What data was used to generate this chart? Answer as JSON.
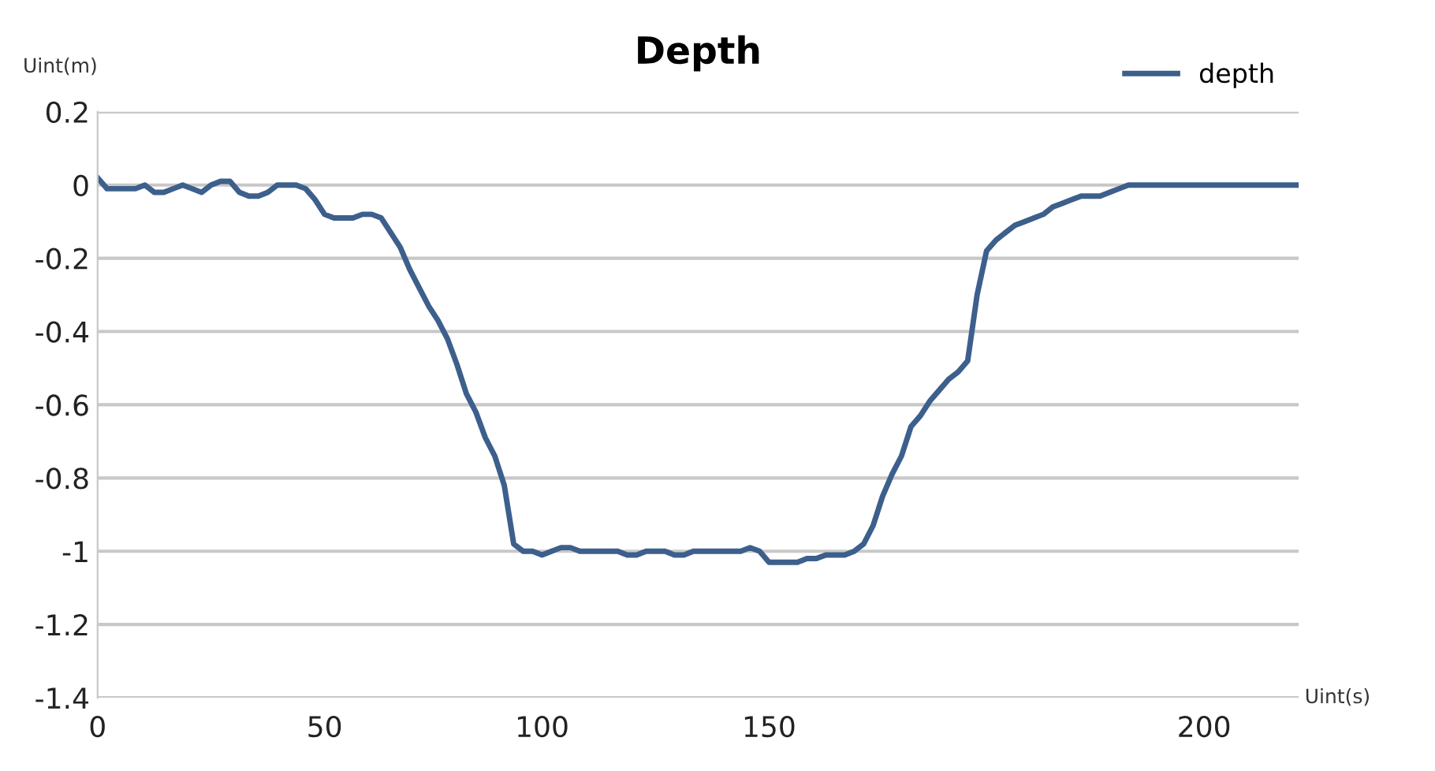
{
  "chart_data": {
    "type": "line",
    "title": "Depth",
    "xlabel": "Uint(s)",
    "ylabel": "Uint(m)",
    "categories": [
      "0",
      null,
      null,
      null,
      null,
      null,
      null,
      null,
      null,
      null,
      null,
      null,
      null,
      null,
      null,
      null,
      null,
      null,
      null,
      null,
      null,
      null,
      null,
      null,
      "50",
      null,
      null,
      null,
      null,
      null,
      null,
      null,
      null,
      null,
      null,
      null,
      null,
      null,
      null,
      null,
      null,
      null,
      null,
      null,
      null,
      null,
      null,
      "100",
      null,
      null,
      null,
      null,
      null,
      null,
      null,
      null,
      null,
      null,
      null,
      null,
      null,
      null,
      null,
      null,
      null,
      null,
      null,
      null,
      null,
      null,
      null,
      "150",
      null,
      null,
      null,
      null,
      null,
      null,
      null,
      null,
      null,
      null,
      null,
      null,
      null,
      null,
      null,
      null,
      null,
      null,
      null,
      null,
      null,
      null,
      null,
      null,
      null,
      null,
      null,
      null,
      null,
      null,
      null,
      null,
      null,
      null,
      null,
      null,
      null,
      null,
      null,
      null,
      null,
      null,
      null,
      null,
      null,
      "200",
      null,
      null,
      null,
      null,
      null,
      null,
      null,
      null,
      null,
      null
    ],
    "ylim": [
      -1.4,
      0.2
    ],
    "yticks": [
      0.2,
      0,
      -0.2,
      -0.4,
      -0.6,
      -0.8,
      -1,
      -1.2,
      -1.4
    ],
    "grid": "y",
    "legend": "top right",
    "line_style": "solid",
    "marker": "none",
    "series": [
      {
        "name": "depth",
        "color": "#3d5f8c",
        "values": [
          0.02,
          -0.01,
          -0.01,
          -0.01,
          -0.01,
          0,
          -0.02,
          -0.02,
          -0.01,
          0,
          -0.01,
          -0.02,
          0,
          0.01,
          0.01,
          -0.02,
          -0.03,
          -0.03,
          -0.02,
          0,
          0,
          0,
          -0.01,
          -0.04,
          -0.08,
          -0.09,
          -0.09,
          -0.09,
          -0.08,
          -0.08,
          -0.09,
          -0.13,
          -0.17,
          -0.23,
          -0.28,
          -0.33,
          -0.37,
          -0.42,
          -0.49,
          -0.57,
          -0.62,
          -0.69,
          -0.74,
          -0.82,
          -0.98,
          -1.0,
          -1.0,
          -1.01,
          -1.0,
          -0.99,
          -0.99,
          -1.0,
          -1.0,
          -1.0,
          -1.0,
          -1.0,
          -1.01,
          -1.01,
          -1.0,
          -1.0,
          -1.0,
          -1.01,
          -1.01,
          -1.0,
          -1.0,
          -1.0,
          -1.0,
          -1.0,
          -1.0,
          -0.99,
          -1.0,
          -1.03,
          -1.03,
          -1.03,
          -1.03,
          -1.02,
          -1.02,
          -1.01,
          -1.01,
          -1.01,
          -1.0,
          -0.98,
          -0.93,
          -0.85,
          -0.79,
          -0.74,
          -0.66,
          -0.63,
          -0.59,
          -0.56,
          -0.53,
          -0.51,
          -0.48,
          -0.3,
          -0.18,
          -0.15,
          -0.13,
          -0.11,
          -0.1,
          -0.09,
          -0.08,
          -0.06,
          -0.05,
          -0.04,
          -0.03,
          -0.03,
          -0.03,
          -0.02,
          -0.01,
          0,
          0,
          0,
          0,
          0,
          0,
          0,
          0,
          0,
          0,
          0,
          0,
          0,
          0,
          0,
          0,
          0,
          0,
          0
        ]
      }
    ]
  }
}
